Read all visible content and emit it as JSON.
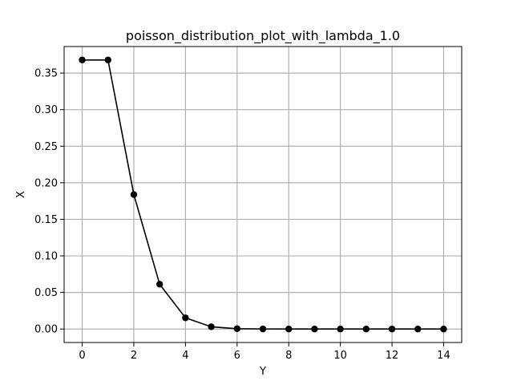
{
  "chart_data": {
    "type": "line",
    "title": "poisson_distribution_plot_with_lambda_1.0",
    "xlabel": "Y",
    "ylabel": "X",
    "x": [
      0,
      1,
      2,
      3,
      4,
      5,
      6,
      7,
      8,
      9,
      10,
      11,
      12,
      13,
      14
    ],
    "series": [
      {
        "values": [
          0.3679,
          0.3679,
          0.1839,
          0.0613,
          0.0153,
          0.0031,
          0.0005,
          0.0001,
          0.0,
          0.0,
          0.0,
          0.0,
          0.0,
          0.0,
          0.0
        ],
        "color": "#000000",
        "marker": "circle"
      }
    ],
    "xlim": [
      -0.7,
      14.7
    ],
    "ylim": [
      -0.0184,
      0.3863
    ],
    "xticks": [
      0,
      2,
      4,
      6,
      8,
      10,
      12,
      14
    ],
    "xtick_labels": [
      "0",
      "2",
      "4",
      "6",
      "8",
      "10",
      "12",
      "14"
    ],
    "yticks": [
      0.0,
      0.05,
      0.1,
      0.15,
      0.2,
      0.25,
      0.3,
      0.35
    ],
    "ytick_labels": [
      "0.00",
      "0.05",
      "0.10",
      "0.15",
      "0.20",
      "0.25",
      "0.30",
      "0.35"
    ],
    "grid": true,
    "grid_color": "#b0b0b0",
    "line_color": "#000000"
  }
}
